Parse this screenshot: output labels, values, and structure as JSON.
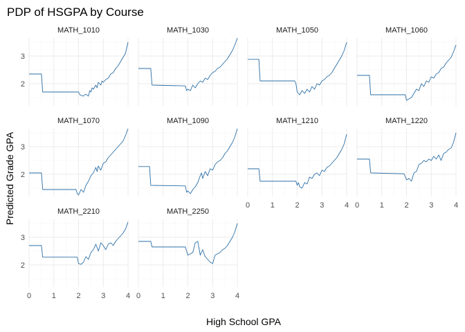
{
  "colors": {
    "line": "#2a6ea6",
    "grid_major": "#ebebeb",
    "grid_minor": "#f5f5f5"
  },
  "chart_data": {
    "type": "line",
    "title": "PDP of HSGPA by Course",
    "xlabel": "High School GPA",
    "ylabel": "Predicted Grade GPA",
    "xlim": [
      0,
      4
    ],
    "ylim": [
      1.2,
      3.65
    ],
    "xticks": [
      0,
      1,
      2,
      3,
      4
    ],
    "yticks": [
      2,
      3
    ],
    "grid": true,
    "legend": "none",
    "facets": [
      {
        "label": "MATH_1010",
        "x": [
          0,
          0.5,
          0.55,
          2.0,
          2.05,
          2.1,
          2.2,
          2.25,
          2.3,
          2.4,
          2.45,
          2.5,
          2.55,
          2.6,
          2.7,
          2.75,
          2.8,
          2.9,
          2.95,
          3.0,
          3.1,
          3.2,
          3.3,
          3.4,
          3.5,
          3.6,
          3.7,
          3.8,
          3.9,
          3.95,
          4.0
        ],
        "y": [
          2.35,
          2.35,
          1.7,
          1.7,
          1.6,
          1.58,
          1.55,
          1.6,
          1.62,
          1.55,
          1.75,
          1.7,
          1.85,
          1.8,
          1.95,
          1.85,
          2.05,
          1.95,
          2.1,
          2.05,
          2.15,
          2.2,
          2.35,
          2.4,
          2.55,
          2.65,
          2.8,
          2.95,
          3.1,
          3.3,
          3.5
        ]
      },
      {
        "label": "MATH_1030",
        "x": [
          0,
          0.5,
          0.55,
          1.9,
          1.95,
          2.0,
          2.1,
          2.2,
          2.3,
          2.4,
          2.5,
          2.6,
          2.7,
          2.8,
          2.9,
          3.0,
          3.1,
          3.2,
          3.3,
          3.4,
          3.5,
          3.6,
          3.7,
          3.8,
          3.9,
          4.0
        ],
        "y": [
          2.55,
          2.55,
          1.95,
          1.92,
          1.75,
          1.8,
          1.75,
          1.95,
          1.85,
          2.0,
          2.1,
          2.05,
          2.2,
          2.15,
          2.3,
          2.4,
          2.45,
          2.55,
          2.6,
          2.7,
          2.8,
          2.9,
          3.05,
          3.2,
          3.4,
          3.65
        ]
      },
      {
        "label": "MATH_1050",
        "x": [
          0,
          0.45,
          0.5,
          1.9,
          1.95,
          2.0,
          2.1,
          2.2,
          2.3,
          2.4,
          2.5,
          2.6,
          2.7,
          2.8,
          2.9,
          3.0,
          3.1,
          3.2,
          3.3,
          3.4,
          3.5,
          3.6,
          3.7,
          3.8,
          3.9,
          4.0
        ],
        "y": [
          2.88,
          2.88,
          2.1,
          2.1,
          2.0,
          1.7,
          1.6,
          1.75,
          1.65,
          1.8,
          1.7,
          1.9,
          1.8,
          2.0,
          1.95,
          2.1,
          2.15,
          2.25,
          2.3,
          2.4,
          2.55,
          2.7,
          2.85,
          3.0,
          3.2,
          3.5
        ]
      },
      {
        "label": "MATH_1060",
        "x": [
          0,
          0.5,
          0.55,
          1.95,
          2.0,
          2.1,
          2.2,
          2.3,
          2.4,
          2.5,
          2.6,
          2.7,
          2.8,
          2.9,
          3.0,
          3.1,
          3.2,
          3.3,
          3.4,
          3.5,
          3.6,
          3.7,
          3.8,
          3.9,
          4.0
        ],
        "y": [
          2.3,
          2.3,
          1.6,
          1.6,
          1.4,
          1.45,
          1.5,
          1.65,
          1.8,
          1.75,
          2.0,
          1.9,
          2.1,
          2.05,
          2.25,
          2.2,
          2.35,
          2.4,
          2.55,
          2.6,
          2.75,
          2.85,
          2.95,
          3.15,
          3.4
        ]
      },
      {
        "label": "MATH_1070",
        "x": [
          0,
          0.5,
          0.55,
          1.9,
          1.95,
          2.0,
          2.1,
          2.2,
          2.3,
          2.4,
          2.5,
          2.6,
          2.7,
          2.75,
          2.8,
          2.9,
          3.0,
          3.1,
          3.2,
          3.3,
          3.4,
          3.5,
          3.6,
          3.7,
          3.8,
          3.9,
          4.0
        ],
        "y": [
          2.05,
          2.05,
          1.45,
          1.45,
          1.3,
          1.25,
          1.45,
          1.35,
          1.6,
          1.75,
          1.95,
          2.05,
          2.25,
          2.1,
          2.3,
          2.15,
          2.4,
          2.45,
          2.6,
          2.7,
          2.8,
          2.9,
          3.0,
          3.1,
          3.2,
          3.4,
          3.65
        ]
      },
      {
        "label": "MATH_1090",
        "x": [
          0,
          0.45,
          0.5,
          1.9,
          1.95,
          2.0,
          2.1,
          2.2,
          2.3,
          2.4,
          2.5,
          2.55,
          2.6,
          2.7,
          2.8,
          2.9,
          3.0,
          3.1,
          3.2,
          3.3,
          3.4,
          3.5,
          3.6,
          3.7,
          3.8,
          3.9,
          4.0
        ],
        "y": [
          2.28,
          2.28,
          1.6,
          1.58,
          1.35,
          1.4,
          1.3,
          1.45,
          1.55,
          1.7,
          1.95,
          2.05,
          1.85,
          2.1,
          1.95,
          2.2,
          2.15,
          2.35,
          2.45,
          2.5,
          2.6,
          2.75,
          2.85,
          3.0,
          3.15,
          3.35,
          3.65
        ]
      },
      {
        "label": "MATH_1210",
        "x": [
          0,
          0.45,
          0.5,
          1.95,
          2.0,
          2.05,
          2.1,
          2.2,
          2.3,
          2.4,
          2.5,
          2.6,
          2.7,
          2.8,
          2.9,
          3.0,
          3.1,
          3.2,
          3.3,
          3.4,
          3.5,
          3.6,
          3.7,
          3.8,
          3.9,
          4.0
        ],
        "y": [
          2.2,
          2.2,
          1.75,
          1.75,
          1.6,
          1.7,
          1.55,
          1.5,
          1.7,
          1.65,
          1.9,
          1.85,
          2.0,
          2.05,
          1.95,
          2.15,
          2.1,
          2.25,
          2.3,
          2.4,
          2.5,
          2.6,
          2.75,
          2.9,
          3.1,
          3.45
        ]
      },
      {
        "label": "MATH_1220",
        "x": [
          0,
          0.5,
          0.55,
          1.9,
          2.0,
          2.1,
          2.2,
          2.3,
          2.4,
          2.5,
          2.6,
          2.7,
          2.8,
          2.9,
          3.0,
          3.1,
          3.2,
          3.3,
          3.4,
          3.5,
          3.6,
          3.7,
          3.8,
          3.9,
          4.0
        ],
        "y": [
          2.55,
          2.55,
          2.05,
          2.02,
          1.8,
          1.85,
          1.75,
          2.05,
          2.1,
          2.35,
          2.4,
          2.5,
          2.45,
          2.55,
          2.5,
          2.65,
          2.55,
          2.7,
          2.5,
          2.75,
          2.8,
          2.9,
          2.95,
          3.15,
          3.5
        ]
      },
      {
        "label": "MATH_2210",
        "x": [
          0,
          0.5,
          0.55,
          1.95,
          2.0,
          2.1,
          2.2,
          2.3,
          2.4,
          2.5,
          2.6,
          2.7,
          2.8,
          2.9,
          3.0,
          3.1,
          3.2,
          3.3,
          3.4,
          3.5,
          3.6,
          3.7,
          3.8,
          3.9,
          4.0
        ],
        "y": [
          2.7,
          2.7,
          2.28,
          2.28,
          2.05,
          2.02,
          2.1,
          2.3,
          2.2,
          2.45,
          2.55,
          2.75,
          2.5,
          2.8,
          2.7,
          2.55,
          2.75,
          2.8,
          2.7,
          2.85,
          2.95,
          3.05,
          3.15,
          3.3,
          3.55
        ]
      },
      {
        "label": "MATH_2250",
        "x": [
          0,
          0.5,
          0.55,
          1.9,
          2.0,
          2.1,
          2.2,
          2.3,
          2.4,
          2.5,
          2.6,
          2.7,
          2.8,
          2.9,
          3.0,
          3.1,
          3.2,
          3.3,
          3.4,
          3.5,
          3.6,
          3.7,
          3.8,
          3.9,
          4.0
        ],
        "y": [
          2.85,
          2.85,
          2.65,
          2.65,
          2.35,
          2.4,
          2.45,
          2.8,
          2.85,
          2.35,
          2.55,
          2.3,
          2.2,
          2.1,
          2.05,
          2.35,
          2.4,
          2.45,
          2.55,
          2.6,
          2.7,
          2.85,
          3.0,
          3.2,
          3.5
        ]
      }
    ]
  }
}
